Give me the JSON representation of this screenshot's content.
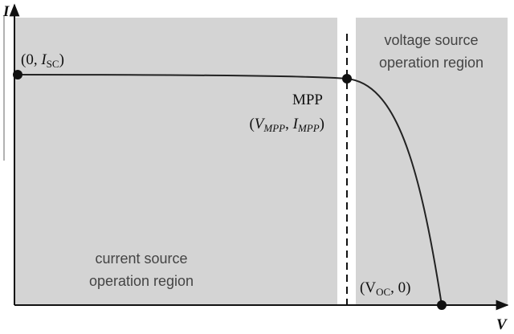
{
  "axes": {
    "y_label": "I",
    "x_label": "V"
  },
  "regions": [
    {
      "lines": [
        "voltage source",
        "operation region"
      ]
    },
    {
      "lines": [
        "current source",
        "operation region"
      ]
    }
  ],
  "points": [
    {
      "label": [
        "(0, ",
        "I",
        "SC",
        ")"
      ]
    },
    {
      "name": "MPP",
      "label": [
        "(",
        "V",
        "MPP",
        ", ",
        "I",
        "MPP",
        ")"
      ]
    },
    {
      "label": [
        "(V",
        "OC",
        ", 0)"
      ]
    }
  ]
}
